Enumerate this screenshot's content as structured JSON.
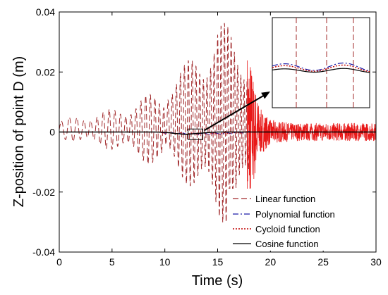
{
  "chart_data": {
    "type": "line",
    "xlabel": "Time (s)",
    "ylabel": "Z-position of point D (m)",
    "xlim": [
      0,
      30
    ],
    "ylim": [
      -0.04,
      0.04
    ],
    "x_ticks": [
      "0",
      "5",
      "10",
      "15",
      "20",
      "25",
      "30"
    ],
    "y_ticks": [
      "0.04",
      "0.02",
      "0",
      "-0.02",
      "-0.04"
    ],
    "grid": false,
    "legend_position": "bottom-right",
    "series": [
      {
        "name": "Linear function",
        "color": "#a0282a",
        "style": "dashed",
        "description": "oscillation with growing amplitude up to about 0.035 near t=15 s, then large transients around t=18 s and small high-frequency oscillation after 19 s",
        "envelope": {
          "t": [
            0,
            2,
            4,
            6,
            8,
            10,
            12,
            13,
            14,
            15,
            16,
            17,
            18,
            18.5,
            19,
            20,
            22,
            25,
            30
          ],
          "amplitude": [
            0.003,
            0.005,
            0.006,
            0.008,
            0.011,
            0.014,
            0.02,
            0.026,
            0.03,
            0.035,
            0.033,
            0.03,
            0.028,
            0.016,
            0.008,
            0.004,
            0.003,
            0.003,
            0.003
          ]
        }
      },
      {
        "name": "Polynomial function",
        "color": "#1a1aa8",
        "style": "dashdot",
        "description": "near zero, small deviation around 10-18 s"
      },
      {
        "name": "Cycloid function",
        "color": "#c00000",
        "style": "dotted",
        "description": "near zero, small deviation around 10-18 s"
      },
      {
        "name": "Cosine function",
        "color": "#000000",
        "style": "solid",
        "description": "near zero throughout, slight dip near t=12 s",
        "points": {
          "x": [
            0,
            5,
            9,
            10,
            11,
            12,
            13,
            14,
            15,
            18,
            20,
            25,
            30
          ],
          "y": [
            0,
            0,
            0,
            -0.0001,
            -0.0005,
            -0.0008,
            -0.0005,
            -0.0002,
            0,
            0,
            0,
            0,
            0
          ]
        }
      }
    ],
    "annotations": [
      {
        "type": "zoom-box",
        "x_range": [
          12.2,
          13.6
        ],
        "y_range": [
          -0.0025,
          0.001
        ],
        "inset": "magnified view of the region showing all four curves, with the linear-function dashed lines crossing vertically"
      }
    ]
  }
}
